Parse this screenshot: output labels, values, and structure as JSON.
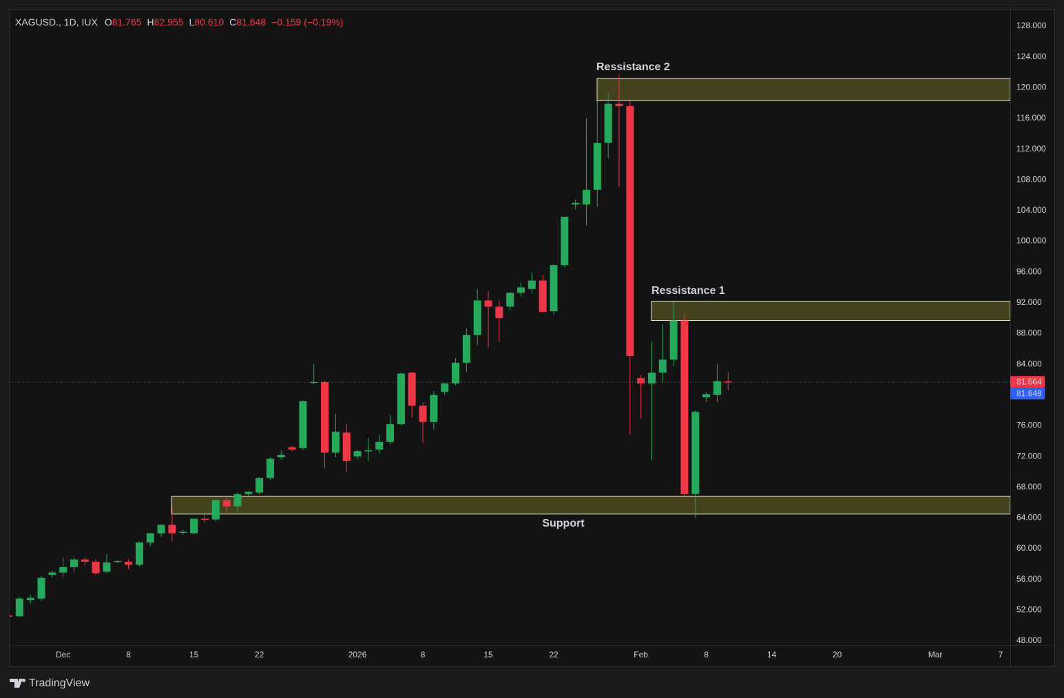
{
  "chart_data": {
    "type": "candlestick",
    "header": {
      "symbol": "XAGUSD., 1D, IUX",
      "ohlc": [
        {
          "label": "O",
          "value": "81.765"
        },
        {
          "label": "H",
          "value": "82.955"
        },
        {
          "label": "L",
          "value": "80.610"
        },
        {
          "label": "C",
          "value": "81.648"
        }
      ],
      "change": "−0.159 (−0.19%)",
      "value_color": "#f23645"
    },
    "categories": [
      null,
      null,
      null,
      null,
      null,
      "Dec",
      null,
      null,
      null,
      null,
      null,
      "8",
      null,
      null,
      null,
      null,
      null,
      "15",
      null,
      null,
      null,
      null,
      null,
      "22",
      null,
      null,
      null,
      null,
      null,
      null,
      null,
      null,
      "2026",
      null,
      null,
      null,
      null,
      null,
      "8",
      null,
      null,
      null,
      null,
      null,
      "15",
      null,
      null,
      null,
      null,
      null,
      "22",
      null,
      null,
      null,
      null,
      null,
      null,
      null,
      "Feb",
      null,
      null,
      null,
      null,
      null,
      "8",
      null,
      null,
      null,
      null,
      null,
      "14",
      null,
      null,
      null,
      null,
      null,
      "20",
      null,
      null,
      null,
      null,
      null,
      null,
      null,
      null,
      "Mar",
      null,
      null,
      null,
      null,
      null,
      "7"
    ],
    "open": [
      51.3,
      51.2,
      53.3,
      53.5,
      56.6,
      56.9,
      57.6,
      58.6,
      58.3,
      57.0,
      58.3,
      58.3,
      57.9,
      60.8,
      62.0,
      63.1,
      62.1,
      62.0,
      63.9,
      63.8,
      66.3,
      65.5,
      67.1,
      67.3,
      69.2,
      71.9,
      73.2,
      73.1,
      81.6,
      81.7,
      72.5,
      75.1,
      72.0,
      72.7,
      72.9,
      73.9,
      76.2,
      82.9,
      78.6,
      76.5,
      80.4,
      81.5,
      84.2,
      87.8,
      92.3,
      91.5,
      91.5,
      93.3,
      93.8,
      94.9,
      90.9,
      96.9,
      104.8,
      104.8,
      106.7,
      112.8,
      117.9,
      117.6,
      82.2,
      81.5,
      82.9,
      84.6,
      89.7,
      67.1,
      79.7,
      80.0,
      81.765,
      null,
      null,
      null,
      null,
      null,
      null,
      null,
      null,
      null,
      null,
      null,
      null,
      null,
      null,
      null,
      null,
      null,
      null,
      null,
      null,
      null,
      null,
      null,
      null,
      null
    ],
    "high": [
      51.4,
      53.7,
      54.0,
      56.4,
      57.1,
      58.8,
      58.9,
      58.9,
      58.6,
      59.3,
      58.5,
      58.6,
      60.9,
      62.1,
      63.2,
      65.7,
      62.5,
      63.9,
      64.5,
      66.4,
      66.6,
      67.3,
      67.5,
      69.3,
      71.9,
      72.8,
      73.4,
      79.3,
      84.0,
      81.8,
      77.5,
      76.3,
      72.9,
      74.4,
      74.8,
      77.4,
      82.9,
      83.0,
      79.0,
      80.5,
      81.5,
      84.8,
      88.7,
      93.8,
      93.5,
      92.3,
      93.4,
      94.6,
      96.0,
      95.6,
      97.0,
      103.2,
      105.4,
      116.0,
      118.2,
      119.3,
      121.7,
      118.2,
      82.6,
      86.9,
      89.2,
      92.1,
      90.5,
      78.0,
      80.3,
      84.0,
      82.955,
      null,
      null,
      null,
      null,
      null,
      null,
      null,
      null,
      null,
      null,
      null,
      null,
      null,
      null,
      null,
      null,
      null,
      null,
      null,
      null,
      null,
      null,
      null,
      null,
      null
    ],
    "low": [
      51.1,
      51.1,
      52.8,
      53.2,
      56.2,
      56.4,
      56.9,
      57.8,
      56.6,
      56.8,
      58.1,
      57.3,
      57.7,
      60.3,
      61.5,
      60.9,
      61.8,
      61.9,
      63.3,
      63.6,
      64.7,
      64.8,
      66.9,
      67.1,
      68.9,
      71.6,
      72.7,
      72.8,
      81.4,
      70.4,
      71.9,
      70.0,
      71.7,
      71.4,
      72.4,
      73.6,
      76.0,
      77.1,
      73.7,
      75.5,
      80.0,
      81.3,
      83.0,
      86.5,
      86.2,
      86.9,
      91.0,
      92.8,
      93.2,
      90.8,
      90.5,
      96.6,
      104.1,
      102.1,
      104.5,
      110.8,
      107.0,
      74.9,
      76.9,
      71.5,
      81.6,
      83.8,
      66.9,
      64.0,
      79.1,
      79.1,
      80.61,
      null,
      null,
      null,
      null,
      null,
      null,
      null,
      null,
      null,
      null,
      null,
      null,
      null,
      null,
      null,
      null,
      null,
      null,
      null,
      null,
      null,
      null,
      null,
      null,
      null
    ],
    "close": [
      51.2,
      53.5,
      53.6,
      56.2,
      56.9,
      57.6,
      58.6,
      58.3,
      56.8,
      58.2,
      58.4,
      57.9,
      60.8,
      62.0,
      63.1,
      62.0,
      62.2,
      63.9,
      63.8,
      66.3,
      65.5,
      67.1,
      67.4,
      69.2,
      71.7,
      72.2,
      72.9,
      79.2,
      81.7,
      72.5,
      75.2,
      71.4,
      72.7,
      72.8,
      73.9,
      76.2,
      82.8,
      78.6,
      76.5,
      80.0,
      81.5,
      84.2,
      87.8,
      92.3,
      91.5,
      90.0,
      93.3,
      94.0,
      94.9,
      90.8,
      96.9,
      103.2,
      105.0,
      106.7,
      112.8,
      117.9,
      117.6,
      85.1,
      81.5,
      82.9,
      84.6,
      89.7,
      67.1,
      77.8,
      80.1,
      81.8,
      81.648,
      null,
      null,
      null,
      null,
      null,
      null,
      null,
      null,
      null,
      null,
      null,
      null,
      null,
      null,
      null,
      null,
      null,
      null,
      null,
      null,
      null,
      null,
      null,
      null,
      null
    ],
    "up_color": "#22ab5a",
    "down_color": "#f23645",
    "ylim": [
      48,
      128
    ],
    "yticks": [
      {
        "value": 128,
        "label": "128.000"
      },
      {
        "value": 124,
        "label": "124.000"
      },
      {
        "value": 120,
        "label": "120.000"
      },
      {
        "value": 116,
        "label": "116.000"
      },
      {
        "value": 112,
        "label": "112.000"
      },
      {
        "value": 108,
        "label": "108.000"
      },
      {
        "value": 104,
        "label": "104.000"
      },
      {
        "value": 100,
        "label": "100.000"
      },
      {
        "value": 96,
        "label": "96.000"
      },
      {
        "value": 92,
        "label": "92.000"
      },
      {
        "value": 88,
        "label": "88.000"
      },
      {
        "value": 84,
        "label": "84.000"
      },
      {
        "value": 76,
        "label": "76.000"
      },
      {
        "value": 72,
        "label": "72.000"
      },
      {
        "value": 68,
        "label": "68.000"
      },
      {
        "value": 64,
        "label": "64.000"
      },
      {
        "value": 60,
        "label": "60.000"
      },
      {
        "value": 56,
        "label": "56.000"
      },
      {
        "value": 52,
        "label": "52.000"
      },
      {
        "value": 48,
        "label": "48.000"
      }
    ],
    "grid": false,
    "zones": [
      {
        "label": "Ressistance 2",
        "top": 121.2,
        "bottom": 118.3
      },
      {
        "label": "Ressistance 1",
        "top": 92.2,
        "bottom": 89.7
      },
      {
        "label": "Support",
        "top": 66.8,
        "bottom": 64.5
      }
    ],
    "price_labels": [
      {
        "value": 81.664,
        "color": "#f23645"
      },
      {
        "value": 81.648,
        "color": "#2962ff"
      }
    ]
  },
  "footer": {
    "brand": "TradingView"
  }
}
